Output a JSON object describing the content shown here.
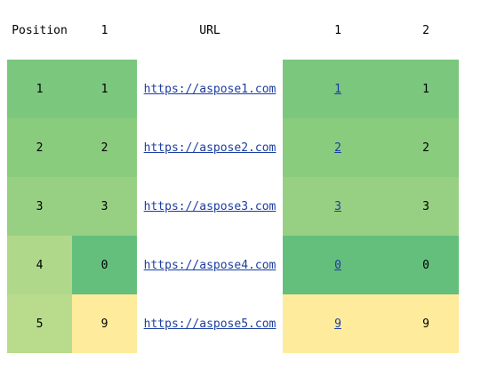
{
  "colors": {
    "green_dark": "#64bf7c",
    "green_mid": "#7bc77e",
    "green_light": "#8acc7e",
    "green_lighter": "#97d083",
    "green_pale": "#b0d88a",
    "green_palest": "#b8dc8c",
    "yellow": "#ffeb9c",
    "link": "#1b3da0"
  },
  "table": {
    "headers": [
      "Position",
      "1",
      "URL",
      "1",
      "2"
    ],
    "rows": [
      {
        "position": "1",
        "value1": "1",
        "url": "https://aspose1.com",
        "link": "1",
        "value2": "1"
      },
      {
        "position": "2",
        "value1": "2",
        "url": "https://aspose2.com",
        "link": "2",
        "value2": "2"
      },
      {
        "position": "3",
        "value1": "3",
        "url": "https://aspose3.com",
        "link": "3",
        "value2": "3"
      },
      {
        "position": "4",
        "value1": "0",
        "url": "https://aspose4.com",
        "link": "0",
        "value2": "0"
      },
      {
        "position": "5",
        "value1": "9",
        "url": "https://aspose5.com",
        "link": "9",
        "value2": "9"
      }
    ]
  }
}
